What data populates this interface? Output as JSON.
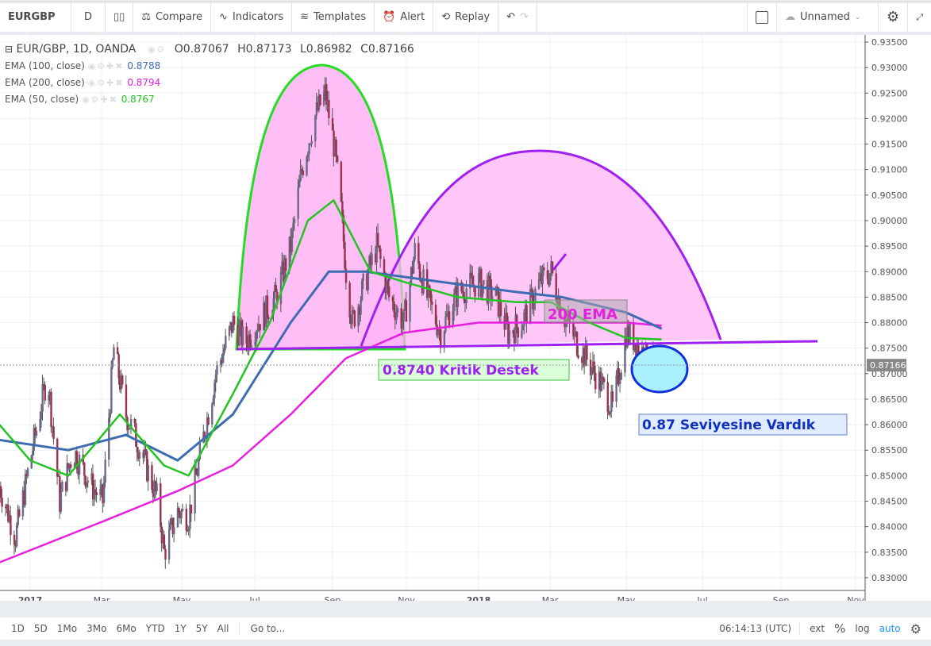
{
  "toolbar": {
    "symbol": "EURGBP",
    "interval": "D",
    "compare": "Compare",
    "indicators": "Indicators",
    "templates": "Templates",
    "alert": "Alert",
    "replay": "Replay",
    "layout_name": "Unnamed"
  },
  "legend": {
    "title": "EUR/GBP, 1D, OANDA",
    "open": "O0.87067",
    "high": "H0.87173",
    "low": "L0.86982",
    "close": "C0.87166",
    "studies": [
      {
        "name": "EMA (100, close)",
        "value": "0.8788",
        "color": "#3d6db0"
      },
      {
        "name": "EMA (200, close)",
        "value": "0.8794",
        "color": "#e81ee0"
      },
      {
        "name": "EMA (50, close)",
        "value": "0.8767",
        "color": "#22c422"
      }
    ]
  },
  "annotations": {
    "support": "0.8740 Kritik Destek",
    "ema_label": "200 EMA",
    "reached": "0.87 Seviyesine Vardık"
  },
  "bottom": {
    "ranges": [
      "1D",
      "5D",
      "1Mo",
      "3Mo",
      "6Mo",
      "YTD",
      "1Y",
      "5Y",
      "All"
    ],
    "goto": "Go to...",
    "time": "06:14:13 (UTC)",
    "ext": "ext",
    "pct": "%",
    "log": "log",
    "auto": "auto"
  },
  "chart_data": {
    "type": "candlestick",
    "symbol": "EUR/GBP",
    "ylim": [
      0.827,
      0.937
    ],
    "y_ticks": [
      "0.93500",
      "0.93000",
      "0.92500",
      "0.92000",
      "0.91500",
      "0.91000",
      "0.90500",
      "0.90000",
      "0.89500",
      "0.89000",
      "0.88500",
      "0.88000",
      "0.87500",
      "0.87000",
      "0.86500",
      "0.86000",
      "0.85500",
      "0.85000",
      "0.84500",
      "0.84000",
      "0.83500",
      "0.83000"
    ],
    "x_ticks": [
      "2017",
      "Mar",
      "May",
      "Jul",
      "Sep",
      "Nov",
      "2018",
      "Mar",
      "May",
      "Jul",
      "Sep",
      "Nov"
    ],
    "last_price": "0.87166",
    "price_path": [
      [
        "2016-12-07",
        0.848
      ],
      [
        "2016-12-20",
        0.838
      ],
      [
        "2017-01-01",
        0.853
      ],
      [
        "2017-01-15",
        0.87
      ],
      [
        "2017-01-25",
        0.845
      ],
      [
        "2017-02-05",
        0.855
      ],
      [
        "2017-02-20",
        0.848
      ],
      [
        "2017-03-01",
        0.845
      ],
      [
        "2017-03-10",
        0.875
      ],
      [
        "2017-03-20",
        0.862
      ],
      [
        "2017-04-01",
        0.855
      ],
      [
        "2017-04-15",
        0.845
      ],
      [
        "2017-04-20",
        0.835
      ],
      [
        "2017-05-01",
        0.843
      ],
      [
        "2017-05-10",
        0.842
      ],
      [
        "2017-05-20",
        0.855
      ],
      [
        "2017-06-01",
        0.87
      ],
      [
        "2017-06-15",
        0.88
      ],
      [
        "2017-06-25",
        0.876
      ],
      [
        "2017-07-05",
        0.88
      ],
      [
        "2017-07-20",
        0.885
      ],
      [
        "2017-08-01",
        0.895
      ],
      [
        "2017-08-10",
        0.91
      ],
      [
        "2017-08-20",
        0.92
      ],
      [
        "2017-08-29",
        0.925
      ],
      [
        "2017-09-05",
        0.915
      ],
      [
        "2017-09-10",
        0.905
      ],
      [
        "2017-09-15",
        0.89
      ],
      [
        "2017-09-20",
        0.88
      ],
      [
        "2017-09-28",
        0.886
      ],
      [
        "2017-10-10",
        0.895
      ],
      [
        "2017-10-20",
        0.885
      ],
      [
        "2017-11-01",
        0.88
      ],
      [
        "2017-11-10",
        0.894
      ],
      [
        "2017-11-20",
        0.885
      ],
      [
        "2017-12-01",
        0.878
      ],
      [
        "2017-12-15",
        0.886
      ],
      [
        "2018-01-01",
        0.888
      ],
      [
        "2018-01-15",
        0.885
      ],
      [
        "2018-01-25",
        0.878
      ],
      [
        "2018-02-05",
        0.88
      ],
      [
        "2018-02-20",
        0.888
      ],
      [
        "2018-03-01",
        0.89
      ],
      [
        "2018-03-10",
        0.882
      ],
      [
        "2018-03-20",
        0.877
      ],
      [
        "2018-04-01",
        0.872
      ],
      [
        "2018-04-15",
        0.866
      ],
      [
        "2018-04-20",
        0.863
      ],
      [
        "2018-05-01",
        0.878
      ],
      [
        "2018-05-10",
        0.876
      ],
      [
        "2018-05-20",
        0.872
      ],
      [
        "2018-05-30",
        0.8717
      ]
    ],
    "series": [
      {
        "name": "EMA (200, close)",
        "color": "#e81ee0",
        "points": [
          [
            "2016-12-07",
            0.833
          ],
          [
            "2017-03-01",
            0.841
          ],
          [
            "2017-05-01",
            0.847
          ],
          [
            "2017-06-15",
            0.852
          ],
          [
            "2017-08-01",
            0.862
          ],
          [
            "2017-09-15",
            0.873
          ],
          [
            "2017-11-01",
            0.878
          ],
          [
            "2018-01-01",
            0.88
          ],
          [
            "2018-03-01",
            0.88
          ],
          [
            "2018-05-01",
            0.88
          ],
          [
            "2018-05-30",
            0.8794
          ]
        ]
      },
      {
        "name": "EMA (100, close)",
        "color": "#3d6db0",
        "points": [
          [
            "2016-12-07",
            0.857
          ],
          [
            "2017-02-01",
            0.855
          ],
          [
            "2017-03-20",
            0.858
          ],
          [
            "2017-05-01",
            0.853
          ],
          [
            "2017-06-15",
            0.862
          ],
          [
            "2017-08-01",
            0.88
          ],
          [
            "2017-09-01",
            0.89
          ],
          [
            "2017-10-01",
            0.89
          ],
          [
            "2017-12-01",
            0.888
          ],
          [
            "2018-02-01",
            0.886
          ],
          [
            "2018-03-10",
            0.885
          ],
          [
            "2018-05-01",
            0.882
          ],
          [
            "2018-05-30",
            0.8788
          ]
        ]
      },
      {
        "name": "EMA (50, close)",
        "color": "#22c422",
        "points": [
          [
            "2016-12-07",
            0.86
          ],
          [
            "2017-01-01",
            0.853
          ],
          [
            "2017-02-01",
            0.85
          ],
          [
            "2017-03-15",
            0.862
          ],
          [
            "2017-04-20",
            0.852
          ],
          [
            "2017-05-10",
            0.85
          ],
          [
            "2017-06-15",
            0.866
          ],
          [
            "2017-07-15",
            0.88
          ],
          [
            "2017-08-15",
            0.9
          ],
          [
            "2017-09-05",
            0.904
          ],
          [
            "2017-10-05",
            0.89
          ],
          [
            "2017-11-01",
            0.888
          ],
          [
            "2017-12-15",
            0.885
          ],
          [
            "2018-02-01",
            0.884
          ],
          [
            "2018-03-01",
            0.884
          ],
          [
            "2018-04-01",
            0.88
          ],
          [
            "2018-05-01",
            0.877
          ],
          [
            "2018-05-30",
            0.8767
          ]
        ]
      }
    ]
  }
}
